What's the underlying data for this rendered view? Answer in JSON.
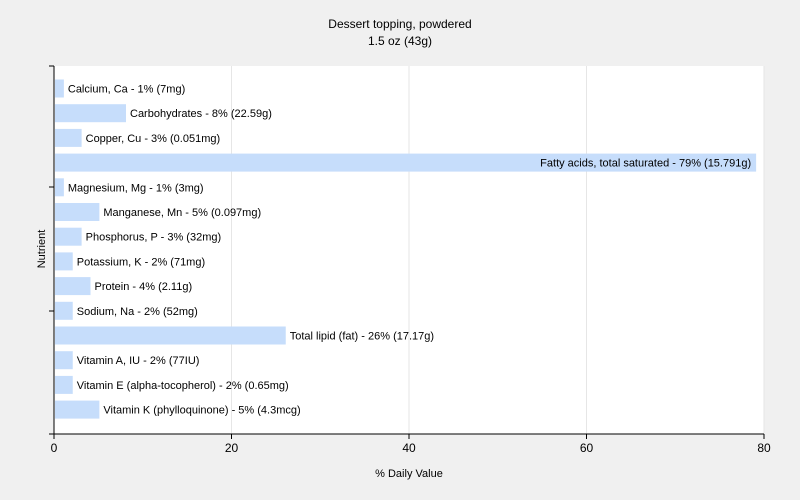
{
  "chart_data": {
    "type": "bar",
    "orientation": "horizontal",
    "title": "Dessert topping, powdered",
    "subtitle": "1.5 oz (43g)",
    "xlabel": "% Daily Value",
    "ylabel": "Nutrient",
    "xlim": [
      0,
      80
    ],
    "xticks": [
      0,
      20,
      40,
      60,
      80
    ],
    "grid": true,
    "bar_color": "#c6ddfb",
    "categories": [
      "Calcium, Ca",
      "Carbohydrates",
      "Copper, Cu",
      "Fatty acids, total saturated",
      "Magnesium, Mg",
      "Manganese, Mn",
      "Phosphorus, P",
      "Potassium, K",
      "Protein",
      "Sodium, Na",
      "Total lipid (fat)",
      "Vitamin A, IU",
      "Vitamin E (alpha-tocopherol)",
      "Vitamin K (phylloquinone)"
    ],
    "values": [
      1,
      8,
      3,
      79,
      1,
      5,
      3,
      2,
      4,
      2,
      26,
      2,
      2,
      5
    ],
    "labels": [
      "Calcium, Ca - 1% (7mg)",
      "Carbohydrates - 8% (22.59g)",
      "Copper, Cu - 3% (0.051mg)",
      "Fatty acids, total saturated - 79% (15.791g)",
      "Magnesium, Mg - 1% (3mg)",
      "Manganese, Mn - 5% (0.097mg)",
      "Phosphorus, P - 3% (32mg)",
      "Potassium, K - 2% (71mg)",
      "Protein - 4% (2.11g)",
      "Sodium, Na - 2% (52mg)",
      "Total lipid (fat) - 26% (17.17g)",
      "Vitamin A, IU - 2% (77IU)",
      "Vitamin E (alpha-tocopherol) - 2% (0.65mg)",
      "Vitamin K (phylloquinone) - 5% (4.3mcg)"
    ]
  }
}
